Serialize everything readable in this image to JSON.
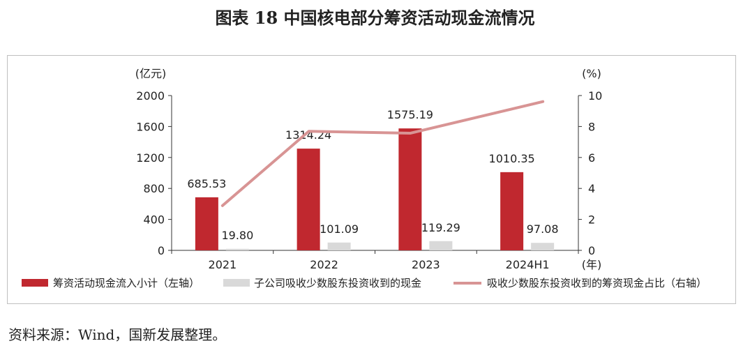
{
  "figure_title": "图表 18  中国核电部分筹资活动现金流情况",
  "source": "资料来源：Wind，国新发展整理。",
  "colors": {
    "bar_primary": "#c0282f",
    "bar_secondary": "#d9d9d9",
    "line": "#d89494",
    "axis": "#333333"
  },
  "chart_data": {
    "type": "bar",
    "categories": [
      "2021",
      "2022",
      "2023",
      "2024H1"
    ],
    "x_unit": "(年)",
    "y_left": {
      "unit": "(亿元)",
      "ticks": [
        "0",
        "400",
        "800",
        "1200",
        "1600",
        "2000"
      ],
      "range": [
        0,
        2000
      ]
    },
    "y_right": {
      "unit": "(%)",
      "ticks": [
        "0",
        "2",
        "4",
        "6",
        "8",
        "10"
      ],
      "range": [
        0,
        10
      ]
    },
    "series": [
      {
        "name": "筹资活动现金流入小计（左轴）",
        "kind": "bar",
        "axis": "left",
        "values": [
          685.53,
          1314.24,
          1575.19,
          1010.35
        ],
        "labels": [
          "685.53",
          "1314.24",
          "1575.19",
          "1010.35"
        ]
      },
      {
        "name": "子公司吸收少数股东投资收到的现金",
        "kind": "bar",
        "axis": "left",
        "values": [
          19.8,
          101.09,
          119.29,
          97.08
        ],
        "labels": [
          "19.80",
          "101.09",
          "119.29",
          "97.08"
        ]
      },
      {
        "name": "吸收少数股东投资收到的筹资现金占比（右轴）",
        "kind": "line",
        "axis": "right",
        "values": [
          2.89,
          7.69,
          7.57,
          9.61
        ]
      }
    ],
    "legend_position": "bottom",
    "grid": false
  }
}
